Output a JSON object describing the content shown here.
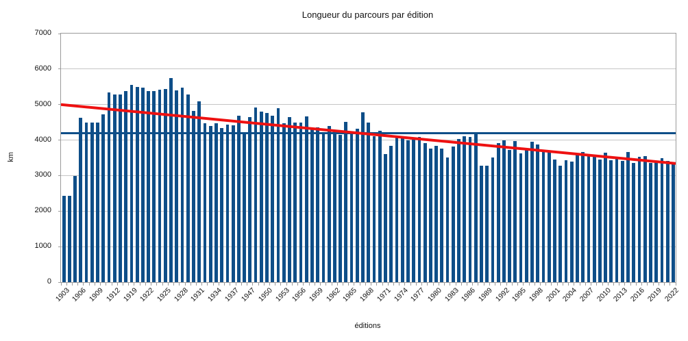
{
  "chart_data": {
    "type": "bar",
    "title": "Longueur du parcours par édition",
    "xlabel": "éditions",
    "ylabel": "km",
    "ylim": [
      0,
      7000
    ],
    "ytick_step": 1000,
    "grid": true,
    "legend": "none",
    "x_label_every": 3,
    "bar_color": "#0e4e88",
    "categories": [
      1903,
      1904,
      1905,
      1906,
      1907,
      1908,
      1909,
      1910,
      1911,
      1912,
      1913,
      1914,
      1919,
      1920,
      1921,
      1922,
      1923,
      1924,
      1925,
      1926,
      1927,
      1928,
      1929,
      1930,
      1931,
      1932,
      1933,
      1934,
      1935,
      1936,
      1937,
      1938,
      1939,
      1947,
      1948,
      1949,
      1950,
      1951,
      1952,
      1953,
      1954,
      1955,
      1956,
      1957,
      1958,
      1959,
      1960,
      1961,
      1962,
      1963,
      1964,
      1965,
      1966,
      1967,
      1968,
      1969,
      1970,
      1971,
      1972,
      1973,
      1974,
      1975,
      1976,
      1977,
      1978,
      1979,
      1980,
      1981,
      1982,
      1983,
      1984,
      1985,
      1986,
      1987,
      1988,
      1989,
      1990,
      1991,
      1992,
      1993,
      1994,
      1995,
      1996,
      1997,
      1998,
      1999,
      2000,
      2001,
      2002,
      2003,
      2004,
      2005,
      2006,
      2007,
      2008,
      2009,
      2010,
      2011,
      2012,
      2013,
      2014,
      2015,
      2016,
      2017,
      2018,
      2019,
      2020,
      2021,
      2022
    ],
    "values": [
      2428,
      2428,
      2994,
      4637,
      4488,
      4497,
      4498,
      4734,
      5343,
      5289,
      5287,
      5380,
      5560,
      5503,
      5485,
      5375,
      5386,
      5425,
      5440,
      5745,
      5398,
      5476,
      5286,
      4822,
      5091,
      4479,
      4395,
      4470,
      4338,
      4442,
      4415,
      4694,
      4224,
      4642,
      4922,
      4808,
      4773,
      4690,
      4898,
      4476,
      4656,
      4495,
      4498,
      4669,
      4319,
      4358,
      4173,
      4397,
      4274,
      4138,
      4504,
      4188,
      4329,
      4779,
      4492,
      4117,
      4254,
      3608,
      3846,
      4090,
      4098,
      4000,
      4017,
      4096,
      3908,
      3765,
      3842,
      3753,
      3507,
      3809,
      4021,
      4109,
      4094,
      4231,
      3286,
      3285,
      3504,
      3914,
      3983,
      3714,
      3978,
      3635,
      3765,
      3950,
      3875,
      3687,
      3662,
      3458,
      3278,
      3427,
      3391,
      3593,
      3657,
      3570,
      3559,
      3459,
      3642,
      3430,
      3497,
      3404,
      3660,
      3360,
      3529,
      3540,
      3351,
      3366,
      3482,
      3414,
      3350
    ],
    "average_line": {
      "value": 4190,
      "color": "#0e4e88"
    },
    "trend_line": {
      "start_value": 5000,
      "end_value": 3340,
      "color": "#ee1111"
    }
  }
}
